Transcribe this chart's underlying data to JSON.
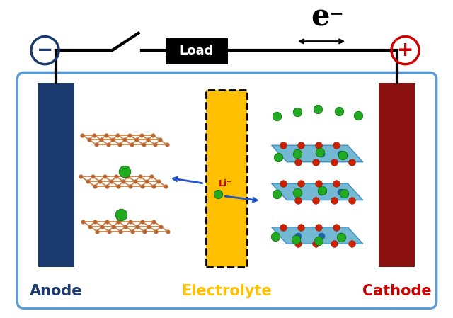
{
  "bg_color": "#ffffff",
  "box_edge_color": "#5b9bd5",
  "anode_color": "#1a3a6e",
  "cathode_color": "#8b1010",
  "electrolyte_color": "#ffc000",
  "electrolyte_border": "#000000",
  "load_box_color": "#000000",
  "load_text_color": "#ffffff",
  "wire_color": "#000000",
  "neg_circle_color": "#1a3a6e",
  "pos_circle_color": "#cc0000",
  "anode_label": "Anode",
  "anode_label_color": "#1a3a6e",
  "electrolyte_label": "Electrolyte",
  "electrolyte_label_color": "#ffc000",
  "cathode_label": "Cathode",
  "cathode_label_color": "#cc0000",
  "load_label": "Load",
  "electron_symbol": "e",
  "li_label": "Li⁺",
  "label_fontsize": 15,
  "load_fontsize": 13,
  "graphite_bond_color": "#c8844a",
  "graphite_node_color": "#b86030",
  "li_green": "#22aa22",
  "teal_color": "#5aadcc",
  "red_atom_color": "#cc2200",
  "arrow_blue": "#2255cc"
}
